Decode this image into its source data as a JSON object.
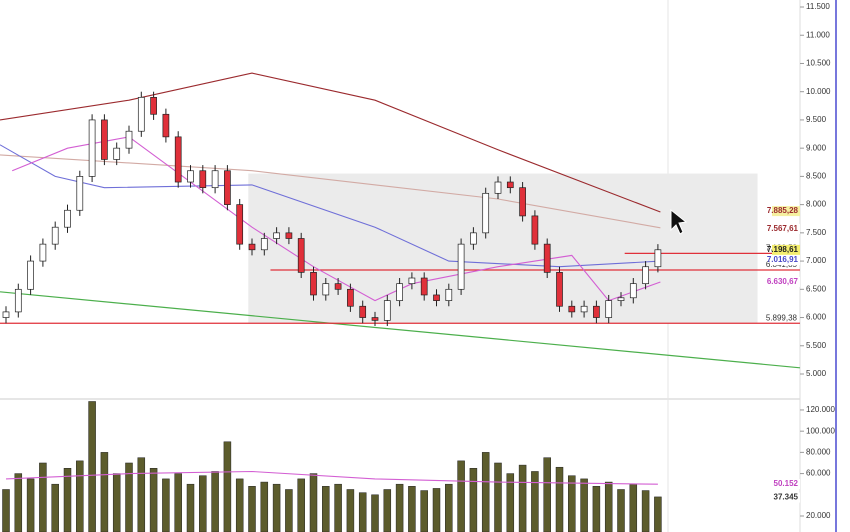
{
  "chart_data": {
    "type": "candlestick",
    "open": [
      6.0,
      6.1,
      6.5,
      7.0,
      7.3,
      7.6,
      7.9,
      8.5,
      9.5,
      8.8,
      9.0,
      9.3,
      9.9,
      9.6,
      9.2,
      8.4,
      8.6,
      8.3,
      8.6,
      8.0,
      7.3,
      7.2,
      7.4,
      7.5,
      7.4,
      6.8,
      6.4,
      6.6,
      6.5,
      6.2,
      6.0,
      5.95,
      6.3,
      6.6,
      6.7,
      6.4,
      6.3,
      6.5,
      7.3,
      7.5,
      8.2,
      8.4,
      8.3,
      7.8,
      7.3,
      6.8,
      6.2,
      6.1,
      6.2,
      6.0,
      6.3,
      6.35,
      6.6,
      6.9
    ],
    "high": [
      6.2,
      6.6,
      7.1,
      7.4,
      7.7,
      8.0,
      8.6,
      9.6,
      9.6,
      9.1,
      9.4,
      10.0,
      10.0,
      9.7,
      9.3,
      8.7,
      8.7,
      8.7,
      8.7,
      8.1,
      7.4,
      7.5,
      7.6,
      7.6,
      7.5,
      6.9,
      6.7,
      6.7,
      6.6,
      6.3,
      6.1,
      6.4,
      6.7,
      6.8,
      6.8,
      6.5,
      6.6,
      7.4,
      7.6,
      8.3,
      8.5,
      8.5,
      8.4,
      7.9,
      7.4,
      6.9,
      6.3,
      6.3,
      6.3,
      6.4,
      6.45,
      6.7,
      7.0,
      7.3
    ],
    "low": [
      5.9,
      6.0,
      6.4,
      6.9,
      7.2,
      7.5,
      7.8,
      8.4,
      8.7,
      8.7,
      8.9,
      9.2,
      9.5,
      9.1,
      8.3,
      8.3,
      8.2,
      8.2,
      7.9,
      7.2,
      7.1,
      7.1,
      7.3,
      7.3,
      6.7,
      6.3,
      6.3,
      6.4,
      6.1,
      5.9,
      5.85,
      5.85,
      6.2,
      6.5,
      6.3,
      6.2,
      6.2,
      6.4,
      7.2,
      7.4,
      8.1,
      8.2,
      7.7,
      7.2,
      6.7,
      6.1,
      6.0,
      6.0,
      5.9,
      5.9,
      6.2,
      6.25,
      6.5,
      6.8
    ],
    "close": [
      6.1,
      6.5,
      7.0,
      7.3,
      7.6,
      7.9,
      8.5,
      9.5,
      8.8,
      9.0,
      9.3,
      9.9,
      9.6,
      9.2,
      8.4,
      8.6,
      8.3,
      8.6,
      8.0,
      7.3,
      7.2,
      7.4,
      7.5,
      7.4,
      6.8,
      6.4,
      6.6,
      6.5,
      6.2,
      6.0,
      5.95,
      6.3,
      6.6,
      6.7,
      6.4,
      6.3,
      6.5,
      7.3,
      7.5,
      8.2,
      8.4,
      8.3,
      7.8,
      7.3,
      6.8,
      6.2,
      6.1,
      6.2,
      6.0,
      6.3,
      6.35,
      6.6,
      6.9,
      7.2
    ],
    "up_color": "#ffffff",
    "down_color": "#e0303a",
    "ylim": [
      4.575,
      11.624
    ],
    "yticks": [
      {
        "value": 5,
        "label": "5.000"
      },
      {
        "value": 5.5,
        "label": "5.500"
      },
      {
        "value": 6,
        "label": "6.000"
      },
      {
        "value": 6.5,
        "label": "6.500"
      },
      {
        "value": 7,
        "label": "7.000"
      },
      {
        "value": 7.5,
        "label": "7.500"
      },
      {
        "value": 8,
        "label": "8.000"
      },
      {
        "value": 8.5,
        "label": "8.500"
      },
      {
        "value": 9,
        "label": "9.000"
      },
      {
        "value": 9.5,
        "label": "9.500"
      },
      {
        "value": 10,
        "label": "10.000"
      },
      {
        "value": 10.5,
        "label": "10.500"
      },
      {
        "value": 11,
        "label": "11.000"
      },
      {
        "value": 11.5,
        "label": "11.500"
      }
    ],
    "lines": [
      {
        "color": "#9b2a2e",
        "x": [
          -0.49,
          10,
          20,
          30,
          40,
          53.2
        ],
        "values": [
          9.5,
          9.85,
          10.33,
          9.85,
          8.97,
          7.87
        ]
      },
      {
        "color": "#d2aaa4",
        "x": [
          -0.49,
          20,
          40,
          53.2
        ],
        "values": [
          8.88,
          8.6,
          8.1,
          7.59
        ]
      },
      {
        "color": "#6f6fd8",
        "x": [
          -0.49,
          4,
          8,
          20,
          30,
          36,
          45,
          53.2
        ],
        "values": [
          9.06,
          8.5,
          8.3,
          8.35,
          7.6,
          7.0,
          6.9,
          7.0
        ]
      },
      {
        "color": "#d35fd3",
        "x": [
          0.5,
          5,
          10,
          20,
          25,
          30,
          33,
          40,
          46,
          49,
          53.2
        ],
        "values": [
          8.6,
          9.0,
          9.2,
          7.6,
          6.9,
          6.3,
          6.6,
          6.9,
          7.1,
          6.3,
          6.63
        ]
      }
    ],
    "zone": {
      "color": "#ebebeb",
      "x": [
        19.7,
        61.1
      ],
      "values": [
        5.9,
        8.55
      ]
    },
    "trendline": {
      "color": "#4caf4c",
      "x": [
        -0.49,
        64.55
      ],
      "values": [
        6.456,
        5.11
      ]
    },
    "levels": [
      {
        "value": 7.13658,
        "label": "7.136,58",
        "x": [
          50.3,
          64.55
        ],
        "color": "#e0303a"
      },
      {
        "value": 6.84185,
        "label": "6.841,85",
        "x": [
          21.5,
          64.55
        ],
        "color": "#e0303a"
      },
      {
        "value": 5.89938,
        "label": "5.899,38",
        "x": [
          -0.49,
          64.55
        ],
        "color": "#e0303a"
      }
    ],
    "markers": [
      {
        "value": 7.88528,
        "label": "7.885,28",
        "bg": "#f5f0a0",
        "fg": "#9b2a2e"
      },
      {
        "value": 7.56761,
        "label": "7.567,61",
        "bg": "#ffffff",
        "fg": "#9b2a2e"
      },
      {
        "value": 7.19861,
        "label": "7.198,61",
        "bg": "#f5ef70",
        "fg": "#222222"
      },
      {
        "value": 7.01691,
        "label": "7.016,91",
        "bg": "#ffffff",
        "fg": "#4848c8"
      },
      {
        "value": 6.63067,
        "label": "6.630,67",
        "bg": "#ffffff",
        "fg": "#c040c0"
      }
    ],
    "volume": {
      "type": "bar",
      "color": "#5c5c2c",
      "values": [
        45,
        60,
        55,
        70,
        50,
        65,
        72,
        128,
        80,
        60,
        70,
        75,
        65,
        55,
        60,
        50,
        58,
        62,
        90,
        55,
        48,
        52,
        50,
        45,
        55,
        60,
        48,
        50,
        45,
        42,
        40,
        45,
        50,
        48,
        44,
        46,
        50,
        72,
        65,
        80,
        70,
        60,
        68,
        62,
        75,
        66,
        58,
        55,
        48,
        52,
        45,
        50,
        44,
        38
      ],
      "ylim": [
        4.9,
        129.4
      ],
      "yticks": [
        {
          "value": 20,
          "label": "20.000"
        },
        {
          "value": 60,
          "label": "60.000"
        },
        {
          "value": 80,
          "label": "80.000"
        },
        {
          "value": 100,
          "label": "100.000"
        },
        {
          "value": 120,
          "label": "120.000"
        }
      ],
      "ma": {
        "color": "#d35fd3",
        "x": [
          0,
          10,
          20,
          30,
          40,
          53
        ],
        "values": [
          55,
          60,
          62,
          55,
          52,
          50
        ]
      },
      "markers": [
        {
          "value": 50.152,
          "label": "50.152",
          "bg": "#ffffff",
          "fg": "#c040c0"
        },
        {
          "value": 37.345,
          "label": "37.345",
          "bg": "#ffffff",
          "fg": "#333333"
        }
      ]
    }
  }
}
